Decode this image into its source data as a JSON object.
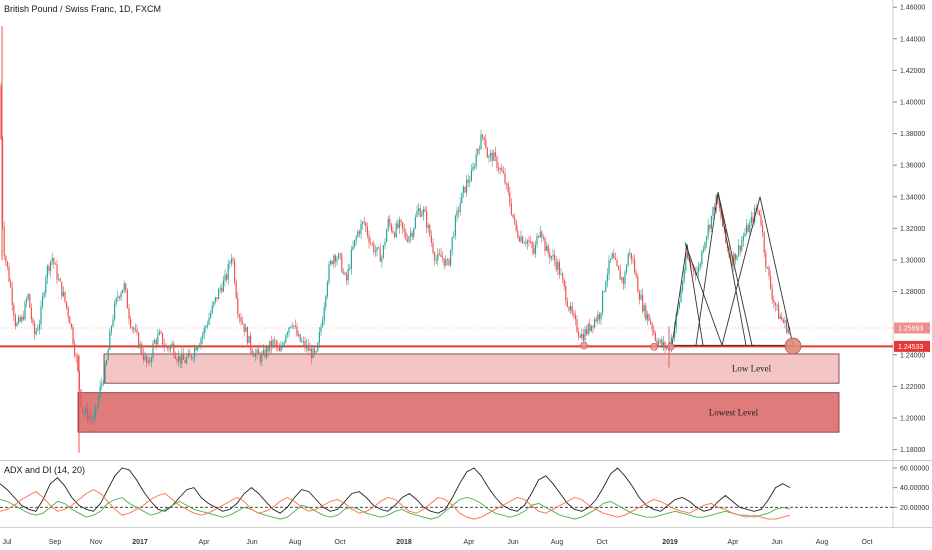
{
  "title": "British Pound / Swiss Franc, 1D, FXCM",
  "indicator_title": "ADX and DI (14, 20)",
  "colors": {
    "up": "#26a69a",
    "down": "#ef5350",
    "zone_low": "#f3c5c5",
    "zone_lowest": "#e07b7b",
    "support_line": "#e53935",
    "adx": "#222222",
    "di_plus": "#4caf50",
    "di_minus": "#ff7043",
    "price_tag_red": "#e53935",
    "price_tag_pink": "#f08f8f"
  },
  "chart_data": [
    {
      "type": "candlestick",
      "title": "British Pound / Swiss Franc, 1D, FXCM",
      "x_ticks": [
        {
          "label": "Jul",
          "bold": false
        },
        {
          "label": "Sep",
          "bold": false
        },
        {
          "label": "Nov",
          "bold": false
        },
        {
          "label": "2017",
          "bold": true
        },
        {
          "label": "Apr",
          "bold": false
        },
        {
          "label": "Jun",
          "bold": false
        },
        {
          "label": "Aug",
          "bold": false
        },
        {
          "label": "Oct",
          "bold": false
        },
        {
          "label": "2018",
          "bold": true
        },
        {
          "label": "Apr",
          "bold": false
        },
        {
          "label": "Jun",
          "bold": false
        },
        {
          "label": "Aug",
          "bold": false
        },
        {
          "label": "Oct",
          "bold": false
        },
        {
          "label": "2019",
          "bold": true
        },
        {
          "label": "Apr",
          "bold": false
        },
        {
          "label": "Jun",
          "bold": false
        },
        {
          "label": "Aug",
          "bold": false
        },
        {
          "label": "Oct",
          "bold": false
        }
      ],
      "y_ticks": [
        "1.46000",
        "1.44000",
        "1.42000",
        "1.40000",
        "1.38000",
        "1.36000",
        "1.34000",
        "1.32000",
        "1.30000",
        "1.28000",
        "1.24000",
        "1.22000",
        "1.20000",
        "1.18000"
      ],
      "ylim": [
        1.172,
        1.462
      ],
      "path": [
        [
          0,
          1.41
        ],
        [
          3,
          1.31
        ],
        [
          10,
          1.285
        ],
        [
          16,
          1.258
        ],
        [
          22,
          1.262
        ],
        [
          28,
          1.278
        ],
        [
          34,
          1.252
        ],
        [
          40,
          1.262
        ],
        [
          46,
          1.292
        ],
        [
          52,
          1.302
        ],
        [
          58,
          1.288
        ],
        [
          64,
          1.276
        ],
        [
          70,
          1.262
        ],
        [
          76,
          1.238
        ],
        [
          82,
          1.205
        ],
        [
          88,
          1.202
        ],
        [
          94,
          1.198
        ],
        [
          100,
          1.218
        ],
        [
          106,
          1.232
        ],
        [
          112,
          1.262
        ],
        [
          118,
          1.278
        ],
        [
          124,
          1.284
        ],
        [
          130,
          1.262
        ],
        [
          136,
          1.252
        ],
        [
          142,
          1.242
        ],
        [
          148,
          1.232
        ],
        [
          154,
          1.248
        ],
        [
          160,
          1.252
        ],
        [
          166,
          1.244
        ],
        [
          172,
          1.246
        ],
        [
          178,
          1.238
        ],
        [
          184,
          1.236
        ],
        [
          190,
          1.238
        ],
        [
          196,
          1.246
        ],
        [
          202,
          1.252
        ],
        [
          208,
          1.262
        ],
        [
          214,
          1.272
        ],
        [
          220,
          1.282
        ],
        [
          226,
          1.288
        ],
        [
          232,
          1.305
        ],
        [
          238,
          1.268
        ],
        [
          244,
          1.258
        ],
        [
          250,
          1.246
        ],
        [
          256,
          1.24
        ],
        [
          262,
          1.238
        ],
        [
          268,
          1.244
        ],
        [
          274,
          1.248
        ],
        [
          280,
          1.24
        ],
        [
          286,
          1.255
        ],
        [
          292,
          1.262
        ],
        [
          298,
          1.25
        ],
        [
          304,
          1.246
        ],
        [
          310,
          1.242
        ],
        [
          316,
          1.238
        ],
        [
          322,
          1.262
        ],
        [
          328,
          1.292
        ],
        [
          334,
          1.304
        ],
        [
          340,
          1.3
        ],
        [
          346,
          1.285
        ],
        [
          352,
          1.305
        ],
        [
          358,
          1.318
        ],
        [
          364,
          1.324
        ],
        [
          370,
          1.312
        ],
        [
          376,
          1.305
        ],
        [
          382,
          1.302
        ],
        [
          388,
          1.324
        ],
        [
          394,
          1.318
        ],
        [
          400,
          1.322
        ],
        [
          406,
          1.314
        ],
        [
          412,
          1.318
        ],
        [
          418,
          1.332
        ],
        [
          424,
          1.33
        ],
        [
          430,
          1.315
        ],
        [
          436,
          1.3
        ],
        [
          442,
          1.302
        ],
        [
          448,
          1.296
        ],
        [
          454,
          1.32
        ],
        [
          460,
          1.336
        ],
        [
          466,
          1.348
        ],
        [
          472,
          1.354
        ],
        [
          478,
          1.372
        ],
        [
          484,
          1.38
        ],
        [
          488,
          1.364
        ],
        [
          492,
          1.366
        ],
        [
          498,
          1.36
        ],
        [
          504,
          1.352
        ],
        [
          510,
          1.336
        ],
        [
          516,
          1.318
        ],
        [
          522,
          1.314
        ],
        [
          528,
          1.312
        ],
        [
          534,
          1.304
        ],
        [
          540,
          1.322
        ],
        [
          546,
          1.306
        ],
        [
          552,
          1.302
        ],
        [
          558,
          1.296
        ],
        [
          564,
          1.282
        ],
        [
          570,
          1.268
        ],
        [
          576,
          1.258
        ],
        [
          582,
          1.252
        ],
        [
          588,
          1.256
        ],
        [
          594,
          1.262
        ],
        [
          600,
          1.266
        ],
        [
          606,
          1.29
        ],
        [
          612,
          1.302
        ],
        [
          618,
          1.292
        ],
        [
          624,
          1.286
        ],
        [
          628,
          1.304
        ],
        [
          632,
          1.302
        ],
        [
          638,
          1.282
        ],
        [
          644,
          1.268
        ],
        [
          650,
          1.262
        ],
        [
          656,
          1.25
        ],
        [
          662,
          1.246
        ],
        [
          668,
          1.244
        ],
        [
          674,
          1.256
        ],
        [
          680,
          1.276
        ],
        [
          686,
          1.302
        ],
        [
          692,
          1.296
        ],
        [
          698,
          1.292
        ],
        [
          704,
          1.312
        ],
        [
          710,
          1.324
        ],
        [
          716,
          1.338
        ],
        [
          720,
          1.33
        ],
        [
          726,
          1.31
        ],
        [
          732,
          1.3
        ],
        [
          738,
          1.306
        ],
        [
          744,
          1.316
        ],
        [
          750,
          1.322
        ],
        [
          756,
          1.332
        ],
        [
          760,
          1.33
        ],
        [
          766,
          1.298
        ],
        [
          772,
          1.278
        ],
        [
          778,
          1.266
        ],
        [
          784,
          1.26
        ],
        [
          790,
          1.255
        ]
      ],
      "last_price": "1.25693",
      "support_price": "1.24533",
      "support_level": 1.2453,
      "zones": [
        {
          "label": "Low Level",
          "top": 1.2405,
          "bottom": 1.222
        },
        {
          "label": "Lowest Level",
          "top": 1.216,
          "bottom": 1.191
        }
      ],
      "touch_points": [
        {
          "x": 584,
          "y": 1.2458
        },
        {
          "x": 654,
          "y": 1.245
        },
        {
          "x": 671,
          "y": 1.2452
        }
      ],
      "highlight_point": {
        "x": 793,
        "y": 1.2455
      },
      "head_shoulders": {
        "baseline": 1.246,
        "lines": [
          [
            [
              672,
              1.246
            ],
            [
              687,
              1.31
            ],
            [
              703,
              1.246
            ]
          ],
          [
            [
              696,
              1.246
            ],
            [
              718,
              1.343
            ],
            [
              746,
              1.246
            ]
          ],
          [
            [
              722,
              1.246
            ],
            [
              760,
              1.34
            ],
            [
              793,
              1.246
            ]
          ],
          [
            [
              685,
              1.311
            ],
            [
              722,
              1.246
            ]
          ],
          [
            [
              718,
              1.343
            ],
            [
              752,
              1.246
            ]
          ]
        ]
      }
    },
    {
      "type": "line",
      "title": "ADX and DI (14, 20)",
      "y_ticks": [
        "60.00000",
        "40.00000",
        "20.00000"
      ],
      "ylim": [
        0,
        62
      ],
      "threshold": 20,
      "series": [
        {
          "name": "ADX",
          "values": [
            44,
            38,
            30,
            22,
            18,
            16,
            28,
            44,
            50,
            42,
            30,
            22,
            18,
            16,
            24,
            38,
            52,
            60,
            58,
            48,
            36,
            26,
            18,
            16,
            22,
            30,
            38,
            40,
            30,
            24,
            20,
            16,
            18,
            24,
            34,
            40,
            34,
            26,
            18,
            14,
            20,
            30,
            38,
            36,
            28,
            20,
            16,
            18,
            26,
            34,
            36,
            30,
            22,
            18,
            16,
            22,
            30,
            34,
            28,
            20,
            16,
            14,
            18,
            30,
            44,
            56,
            60,
            52,
            40,
            30,
            22,
            18,
            16,
            22,
            34,
            48,
            52,
            44,
            34,
            24,
            18,
            16,
            20,
            28,
            40,
            54,
            60,
            52,
            42,
            30,
            22,
            18,
            16,
            22,
            28,
            30,
            26,
            20,
            16,
            18,
            26,
            32,
            26,
            20,
            18,
            16,
            18,
            28,
            40,
            44,
            40
          ]
        },
        {
          "name": "+DI",
          "values": [
            28,
            26,
            22,
            18,
            14,
            12,
            14,
            20,
            26,
            24,
            18,
            14,
            10,
            12,
            16,
            24,
            28,
            30,
            24,
            20,
            16,
            12,
            14,
            18,
            22,
            26,
            22,
            18,
            16,
            14,
            12,
            10,
            12,
            16,
            20,
            18,
            14,
            12,
            10,
            8,
            10,
            16,
            22,
            20,
            16,
            12,
            10,
            12,
            18,
            20,
            18,
            14,
            12,
            10,
            12,
            16,
            18,
            14,
            12,
            10,
            8,
            10,
            16,
            22,
            28,
            30,
            28,
            24,
            18,
            14,
            12,
            10,
            12,
            16,
            22,
            24,
            20,
            16,
            12,
            10,
            8,
            10,
            14,
            18,
            24,
            26,
            22,
            18,
            14,
            12,
            10,
            10,
            12,
            14,
            16,
            14,
            12,
            10,
            10,
            12,
            14,
            16,
            14,
            12,
            12,
            10,
            12,
            14,
            18,
            20,
            18
          ]
        },
        {
          "name": "-DI",
          "values": [
            16,
            18,
            22,
            28,
            32,
            36,
            30,
            22,
            16,
            18,
            22,
            28,
            34,
            38,
            34,
            26,
            18,
            12,
            14,
            18,
            22,
            28,
            32,
            34,
            28,
            22,
            18,
            14,
            12,
            14,
            18,
            22,
            26,
            30,
            26,
            18,
            14,
            16,
            20,
            26,
            30,
            26,
            20,
            16,
            18,
            22,
            26,
            28,
            24,
            18,
            14,
            16,
            20,
            26,
            30,
            28,
            22,
            16,
            14,
            18,
            24,
            30,
            28,
            22,
            14,
            10,
            8,
            10,
            14,
            18,
            22,
            26,
            30,
            28,
            22,
            16,
            14,
            18,
            22,
            26,
            30,
            28,
            22,
            18,
            14,
            12,
            10,
            12,
            16,
            20,
            24,
            28,
            26,
            22,
            18,
            16,
            14,
            18,
            22,
            24,
            20,
            18,
            14,
            12,
            10,
            12,
            10,
            8,
            8,
            10,
            12
          ]
        }
      ]
    }
  ]
}
